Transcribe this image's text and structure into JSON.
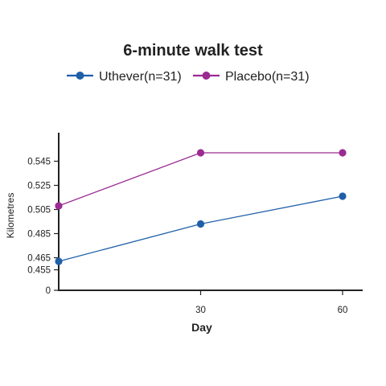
{
  "chart_data": {
    "type": "line",
    "title": "6-minute walk test",
    "xlabel": "Day",
    "ylabel": "Kilometres",
    "x": [
      0,
      30,
      60
    ],
    "x_ticks": [
      30,
      60
    ],
    "x_tick_labels": [
      "30",
      "60"
    ],
    "xlim": [
      0,
      64
    ],
    "y_ticks": [
      0,
      0.455,
      0.465,
      0.485,
      0.505,
      0.525,
      0.545
    ],
    "y_tick_labels": [
      "0",
      "0.455",
      "0.465",
      "0.485",
      "0.505",
      "0.525",
      "0.545"
    ],
    "y_axis_break": true,
    "grid": false,
    "legend_position": "top",
    "series": [
      {
        "name": "Uthever(n=31)",
        "color": "#1f5fa8",
        "values": [
          0.462,
          0.493,
          0.516
        ]
      },
      {
        "name": "Placebo(n=31)",
        "color": "#9b2a92",
        "values": [
          0.508,
          0.552,
          0.552
        ]
      }
    ]
  }
}
